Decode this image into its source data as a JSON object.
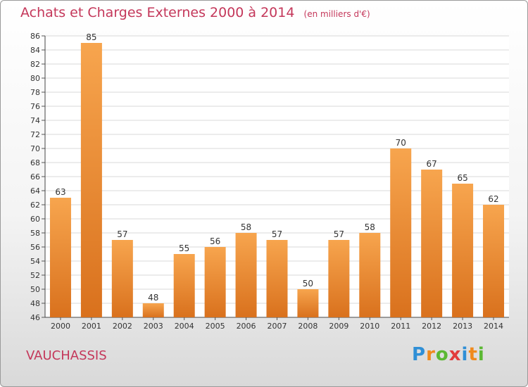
{
  "title": "Achats et Charges Externes 2000 à 2014",
  "subtitle": "(en milliers d'€)",
  "commune": "VAUCHASSIS",
  "logo": {
    "text": "Proxiti",
    "letters": [
      "P",
      "r",
      "o",
      "x",
      "i",
      "t",
      "i"
    ],
    "colors": [
      "#2f8fd6",
      "#f08a1c",
      "#5bb833",
      "#e23c3c",
      "#2f8fd6",
      "#f08a1c",
      "#5bb833"
    ]
  },
  "colors": {
    "bar_top": "#f7a54e",
    "bar_bottom": "#d9711d",
    "title": "#c4375a",
    "grid": "#d8d8d8"
  },
  "chart_data": {
    "type": "bar",
    "categories": [
      "2000",
      "2001",
      "2002",
      "2003",
      "2004",
      "2005",
      "2006",
      "2007",
      "2008",
      "2009",
      "2010",
      "2011",
      "2012",
      "2013",
      "2014"
    ],
    "values": [
      63,
      85,
      57,
      48,
      55,
      56,
      58,
      57,
      50,
      57,
      58,
      70,
      67,
      65,
      62
    ],
    "title": "Achats et Charges Externes 2000 à 2014",
    "subtitle": "(en milliers d'€)",
    "xlabel": "",
    "ylabel": "",
    "ylim": [
      46,
      86
    ],
    "yticks": [
      46,
      48,
      50,
      52,
      54,
      56,
      58,
      60,
      62,
      64,
      66,
      68,
      70,
      72,
      74,
      76,
      78,
      80,
      82,
      84,
      86
    ],
    "grid": true,
    "data_labels": true
  }
}
